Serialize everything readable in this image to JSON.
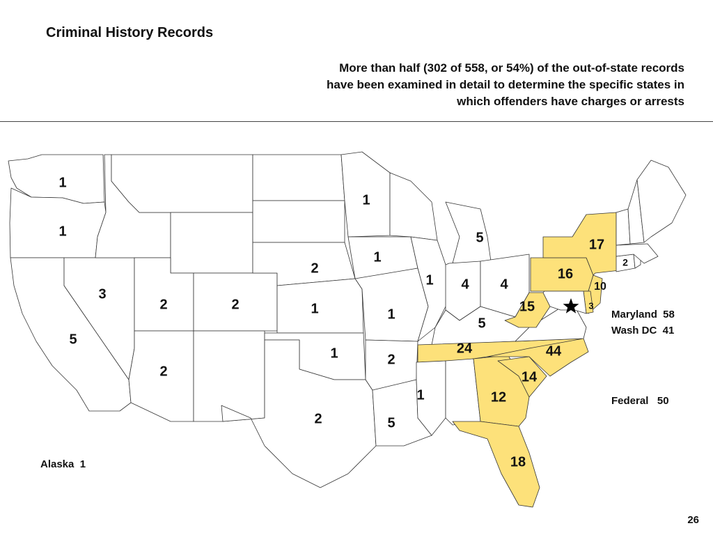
{
  "title": "Criminal History Records",
  "subtitle": [
    "More than half (302 of 558, or 54%) of the out-of-state records",
    "have been examined in detail to determine the specific states in",
    "which offenders have charges or arrests"
  ],
  "colors": {
    "highlight": "#fde17a",
    "default": "#ffffff",
    "border": "#333333"
  },
  "map": {
    "marker_icon": "star-icon",
    "states": [
      {
        "id": "WA",
        "count": "1",
        "highlight": false
      },
      {
        "id": "OR",
        "count": "1",
        "highlight": false
      },
      {
        "id": "CA",
        "count": "5",
        "highlight": false
      },
      {
        "id": "NV",
        "count": "3",
        "highlight": false
      },
      {
        "id": "ID",
        "count": "",
        "highlight": false
      },
      {
        "id": "MT",
        "count": "",
        "highlight": false
      },
      {
        "id": "WY",
        "count": "",
        "highlight": false
      },
      {
        "id": "UT",
        "count": "2",
        "highlight": false
      },
      {
        "id": "CO",
        "count": "2",
        "highlight": false
      },
      {
        "id": "AZ",
        "count": "2",
        "highlight": false
      },
      {
        "id": "NM",
        "count": "",
        "highlight": false
      },
      {
        "id": "ND",
        "count": "",
        "highlight": false
      },
      {
        "id": "SD",
        "count": "",
        "highlight": false
      },
      {
        "id": "NE",
        "count": "2",
        "highlight": false
      },
      {
        "id": "KS",
        "count": "1",
        "highlight": false
      },
      {
        "id": "OK",
        "count": "1",
        "highlight": false
      },
      {
        "id": "TX",
        "count": "2",
        "highlight": false
      },
      {
        "id": "MN",
        "count": "1",
        "highlight": false
      },
      {
        "id": "IA",
        "count": "1",
        "highlight": false
      },
      {
        "id": "MO",
        "count": "1",
        "highlight": false
      },
      {
        "id": "AR",
        "count": "2",
        "highlight": false
      },
      {
        "id": "LA",
        "count": "5",
        "highlight": false
      },
      {
        "id": "WI",
        "count": "",
        "highlight": false
      },
      {
        "id": "IL",
        "count": "1",
        "highlight": false
      },
      {
        "id": "MI",
        "count": "5",
        "highlight": false
      },
      {
        "id": "IN",
        "count": "4",
        "highlight": false
      },
      {
        "id": "OH",
        "count": "4",
        "highlight": false
      },
      {
        "id": "KY",
        "count": "5",
        "highlight": false
      },
      {
        "id": "TN",
        "count": "24",
        "highlight": true
      },
      {
        "id": "MS",
        "count": "1",
        "highlight": false
      },
      {
        "id": "AL",
        "count": "",
        "highlight": false
      },
      {
        "id": "GA",
        "count": "12",
        "highlight": true
      },
      {
        "id": "FL",
        "count": "18",
        "highlight": true
      },
      {
        "id": "SC",
        "count": "14",
        "highlight": true
      },
      {
        "id": "NC",
        "count": "44",
        "highlight": true
      },
      {
        "id": "VA",
        "count": "",
        "highlight": false
      },
      {
        "id": "WV",
        "count": "15",
        "highlight": true
      },
      {
        "id": "PA",
        "count": "16",
        "highlight": true
      },
      {
        "id": "NY",
        "count": "17",
        "highlight": true
      },
      {
        "id": "NJ",
        "count": "10",
        "highlight": true
      },
      {
        "id": "DE",
        "count": "3",
        "highlight": true
      },
      {
        "id": "MD",
        "count": "",
        "highlight": false
      },
      {
        "id": "CT",
        "count": "2",
        "highlight": false
      },
      {
        "id": "RI",
        "count": "",
        "highlight": false
      },
      {
        "id": "MA",
        "count": "",
        "highlight": false
      },
      {
        "id": "VT",
        "count": "",
        "highlight": false
      },
      {
        "id": "NH",
        "count": "",
        "highlight": false
      },
      {
        "id": "ME",
        "count": "",
        "highlight": false
      }
    ]
  },
  "side_notes": {
    "maryland": "Maryland  58",
    "washdc": "Wash DC  41",
    "federal": "Federal   50",
    "alaska": "Alaska  1"
  },
  "page_number": "26"
}
